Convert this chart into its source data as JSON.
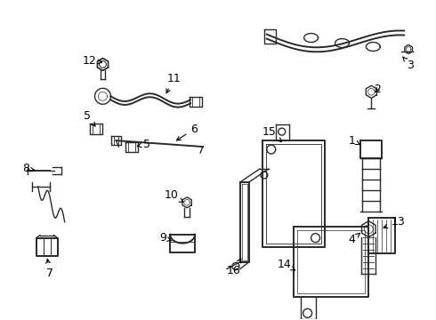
{
  "bg_color": "#ffffff",
  "line_color": "#2a2a2a",
  "label_color": "#000000",
  "fig_width": 4.9,
  "fig_height": 3.6,
  "dpi": 100
}
